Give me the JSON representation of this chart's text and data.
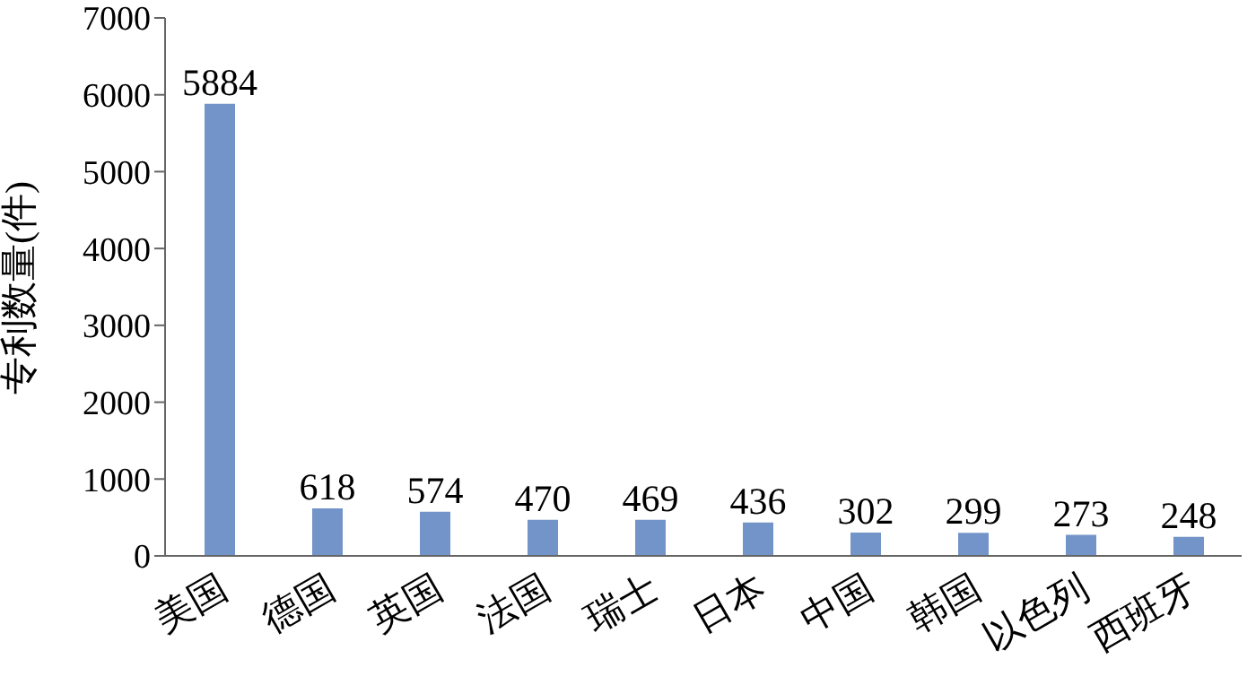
{
  "chart_data": {
    "type": "bar",
    "ylabel": "专利数量(件)",
    "categories": [
      "美国",
      "德国",
      "英国",
      "法国",
      "瑞士",
      "日本",
      "中国",
      "韩国",
      "以色列",
      "西班牙"
    ],
    "values": [
      5884,
      618,
      574,
      470,
      469,
      436,
      302,
      299,
      273,
      248
    ],
    "color": "#7394c8",
    "ylim": [
      0,
      7000
    ],
    "yticks": [
      0,
      1000,
      2000,
      3000,
      4000,
      5000,
      6000,
      7000
    ],
    "grid": false,
    "data_labels": true,
    "legend": false
  }
}
